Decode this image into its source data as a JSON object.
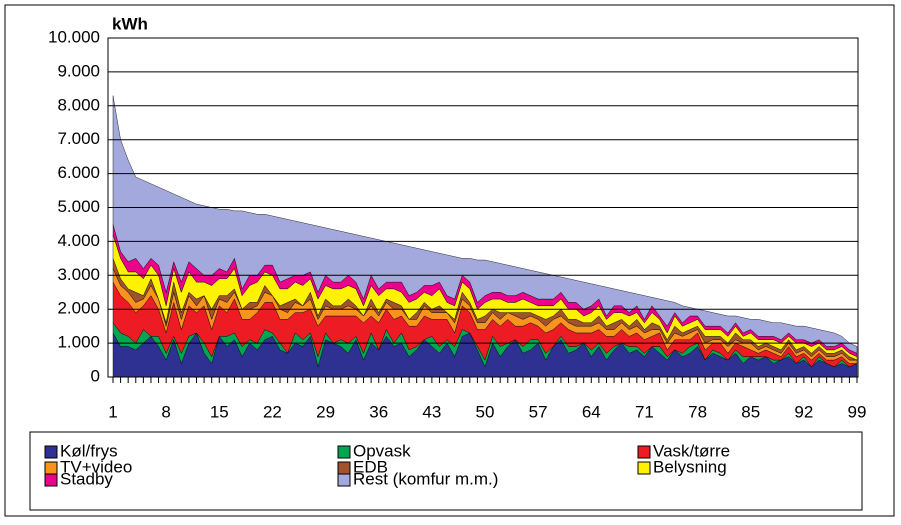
{
  "chart_data": {
    "type": "stacked_area",
    "y_label": "kWh",
    "x": [
      1,
      2,
      3,
      4,
      5,
      6,
      7,
      8,
      9,
      10,
      11,
      12,
      13,
      14,
      15,
      16,
      17,
      18,
      19,
      20,
      21,
      22,
      23,
      24,
      25,
      26,
      27,
      28,
      29,
      30,
      31,
      32,
      33,
      34,
      35,
      36,
      37,
      38,
      39,
      40,
      41,
      42,
      43,
      44,
      45,
      46,
      47,
      48,
      49,
      50,
      51,
      52,
      53,
      54,
      55,
      56,
      57,
      58,
      59,
      60,
      61,
      62,
      63,
      64,
      65,
      66,
      67,
      68,
      69,
      70,
      71,
      72,
      73,
      74,
      75,
      76,
      77,
      78,
      79,
      80,
      81,
      82,
      83,
      84,
      85,
      86,
      87,
      88,
      89,
      90,
      91,
      92,
      93,
      94,
      95,
      96,
      97,
      98,
      99
    ],
    "xlim": [
      1,
      99
    ],
    "xticks": [
      1,
      8,
      15,
      22,
      29,
      36,
      43,
      50,
      57,
      64,
      71,
      78,
      85,
      92,
      99
    ],
    "ylim": [
      0,
      10000
    ],
    "yticks": [
      0,
      {
        "value": 1000,
        "label": "1.000"
      },
      {
        "value": 2000,
        "label": "2.000"
      },
      {
        "value": 3000,
        "label": "3.000"
      },
      {
        "value": 4000,
        "label": "4.000"
      },
      {
        "value": 5000,
        "label": "5.000"
      },
      {
        "value": 6000,
        "label": "6.000"
      },
      {
        "value": 7000,
        "label": "7.000"
      },
      {
        "value": 8000,
        "label": "8.000"
      },
      {
        "value": 9000,
        "label": "9.000"
      },
      {
        "value": 10000,
        "label": "10.000"
      }
    ],
    "grid": true,
    "series": [
      {
        "name": "Køl/frys",
        "color": "#2e3192",
        "values": [
          1300,
          900,
          900,
          800,
          1000,
          1200,
          900,
          500,
          1100,
          400,
          1000,
          1300,
          700,
          400,
          1200,
          900,
          1100,
          600,
          1000,
          800,
          1100,
          1200,
          800,
          700,
          1000,
          900,
          1200,
          300,
          1100,
          1000,
          900,
          700,
          1100,
          500,
          1000,
          800,
          1200,
          900,
          1000,
          600,
          800,
          1100,
          900,
          700,
          1000,
          600,
          1200,
          1300,
          800,
          300,
          1000,
          600,
          900,
          1100,
          700,
          800,
          1000,
          500,
          900,
          1100,
          700,
          800,
          1000,
          600,
          900,
          500,
          800,
          1000,
          700,
          800,
          600,
          900,
          700,
          500,
          800,
          600,
          700,
          900,
          500,
          700,
          600,
          500,
          700,
          400,
          600,
          500,
          600,
          400,
          500,
          600,
          400,
          500,
          300,
          500,
          400,
          300,
          400,
          300,
          400
        ]
      },
      {
        "name": "Opvask",
        "color": "#00a651",
        "values": [
          300,
          400,
          300,
          200,
          400,
          0,
          300,
          200,
          100,
          300,
          200,
          0,
          300,
          200,
          0,
          300,
          200,
          300,
          100,
          200,
          300,
          100,
          200,
          0,
          300,
          200,
          100,
          300,
          200,
          0,
          200,
          300,
          100,
          200,
          300,
          0,
          200,
          100,
          300,
          200,
          100,
          0,
          300,
          200,
          100,
          300,
          200,
          0,
          100,
          200,
          200,
          300,
          100,
          0,
          200,
          300,
          100,
          200,
          0,
          100,
          200,
          100,
          0,
          200,
          100,
          200,
          100,
          0,
          200,
          100,
          100,
          0,
          200,
          100,
          0,
          100,
          200,
          100,
          0,
          100,
          100,
          0,
          100,
          200,
          0,
          100,
          0,
          100,
          0,
          100,
          0,
          100,
          0,
          100,
          0,
          0,
          100,
          0,
          0
        ]
      },
      {
        "name": "Vask/tørre",
        "color": "#ed1c24",
        "values": [
          1200,
          1100,
          1000,
          900,
          700,
          1200,
          800,
          600,
          1000,
          700,
          900,
          600,
          1100,
          800,
          900,
          700,
          1000,
          800,
          600,
          900,
          800,
          900,
          700,
          1000,
          600,
          800,
          700,
          900,
          500,
          800,
          700,
          800,
          600,
          900,
          500,
          800,
          600,
          700,
          500,
          700,
          600,
          700,
          500,
          800,
          600,
          400,
          700,
          600,
          500,
          900,
          500,
          600,
          700,
          400,
          600,
          500,
          400,
          600,
          500,
          400,
          500,
          400,
          300,
          500,
          400,
          500,
          300,
          400,
          300,
          400,
          400,
          300,
          400,
          200,
          300,
          400,
          200,
          300,
          300,
          200,
          300,
          200,
          200,
          300,
          200,
          100,
          200,
          200,
          100,
          200,
          200,
          100,
          200,
          100,
          100,
          200,
          100,
          100,
          0
        ]
      },
      {
        "name": "TV+video",
        "color": "#f7941d",
        "values": [
          400,
          300,
          300,
          300,
          200,
          300,
          300,
          200,
          300,
          300,
          300,
          200,
          300,
          300,
          200,
          300,
          200,
          300,
          300,
          200,
          300,
          200,
          300,
          200,
          300,
          200,
          300,
          200,
          300,
          200,
          200,
          300,
          200,
          200,
          300,
          200,
          200,
          300,
          200,
          200,
          200,
          300,
          200,
          200,
          200,
          300,
          200,
          200,
          200,
          200,
          200,
          200,
          200,
          300,
          200,
          200,
          200,
          200,
          300,
          200,
          200,
          200,
          200,
          200,
          200,
          200,
          200,
          200,
          200,
          200,
          200,
          200,
          100,
          200,
          200,
          100,
          200,
          100,
          200,
          100,
          100,
          200,
          100,
          100,
          200,
          100,
          100,
          100,
          100,
          100,
          100,
          100,
          100,
          100,
          100,
          100,
          100,
          100,
          100
        ]
      },
      {
        "name": "EDB",
        "color": "#a0522d",
        "values": [
          300,
          200,
          100,
          300,
          100,
          200,
          0,
          100,
          300,
          200,
          100,
          200,
          0,
          300,
          100,
          200,
          100,
          0,
          200,
          100,
          200,
          0,
          100,
          300,
          100,
          0,
          200,
          100,
          200,
          100,
          100,
          200,
          100,
          0,
          200,
          100,
          100,
          200,
          100,
          0,
          200,
          100,
          100,
          200,
          0,
          100,
          200,
          100,
          100,
          200,
          100,
          200,
          0,
          100,
          200,
          100,
          100,
          200,
          100,
          200,
          100,
          200,
          100,
          100,
          200,
          100,
          200,
          100,
          100,
          200,
          100,
          200,
          100,
          100,
          200,
          100,
          100,
          100,
          200,
          100,
          100,
          100,
          200,
          100,
          100,
          100,
          100,
          100,
          100,
          100,
          100,
          100,
          100,
          100,
          100,
          100,
          100,
          100,
          0
        ]
      },
      {
        "name": "Belysning",
        "color": "#fff200",
        "values": [
          700,
          600,
          500,
          600,
          500,
          400,
          700,
          500,
          400,
          600,
          600,
          500,
          400,
          700,
          500,
          500,
          600,
          400,
          500,
          600,
          400,
          600,
          500,
          400,
          500,
          600,
          400,
          500,
          400,
          500,
          500,
          400,
          500,
          300,
          400,
          500,
          300,
          400,
          400,
          500,
          400,
          300,
          400,
          500,
          300,
          400,
          300,
          400,
          300,
          400,
          300,
          400,
          300,
          300,
          400,
          300,
          300,
          400,
          300,
          300,
          300,
          300,
          200,
          300,
          300,
          200,
          300,
          200,
          300,
          200,
          200,
          300,
          200,
          200,
          300,
          200,
          200,
          200,
          200,
          200,
          200,
          200,
          200,
          100,
          200,
          200,
          100,
          200,
          200,
          100,
          200,
          100,
          200,
          100,
          100,
          100,
          100,
          100,
          100
        ]
      },
      {
        "name": "Stadby",
        "color": "#ec008c",
        "values": [
          300,
          200,
          300,
          400,
          300,
          200,
          300,
          400,
          200,
          300,
          300,
          400,
          200,
          300,
          300,
          200,
          300,
          200,
          300,
          200,
          200,
          300,
          200,
          300,
          200,
          300,
          200,
          200,
          300,
          200,
          200,
          300,
          200,
          200,
          300,
          200,
          200,
          200,
          300,
          200,
          200,
          200,
          300,
          200,
          200,
          200,
          200,
          200,
          200,
          200,
          200,
          200,
          200,
          200,
          200,
          200,
          200,
          200,
          200,
          200,
          200,
          200,
          200,
          200,
          200,
          100,
          200,
          200,
          100,
          200,
          100,
          200,
          100,
          200,
          100,
          100,
          200,
          100,
          100,
          100,
          100,
          100,
          100,
          100,
          100,
          100,
          100,
          100,
          100,
          100,
          100,
          100,
          100,
          100,
          100,
          100,
          100,
          100,
          100
        ]
      },
      {
        "name": "Rest (komfur m.m.)",
        "color": "#a3a9dc",
        "values": [
          3800,
          3300,
          3000,
          2400,
          2600,
          2200,
          2300,
          3000,
          2000,
          2500,
          1800,
          1900,
          2050,
          2000,
          1750,
          1850,
          1400,
          2300,
          1850,
          1800,
          1500,
          1450,
          1900,
          1750,
          1600,
          1550,
          1400,
          1950,
          1400,
          1550,
          1500,
          1250,
          1400,
          1850,
          1100,
          1450,
          1200,
          1150,
          1100,
          1450,
          1300,
          1050,
          1000,
          850,
          1200,
          1250,
          500,
          700,
          1250,
          1050,
          900,
          850,
          900,
          850,
          700,
          750,
          800,
          750,
          700,
          450,
          700,
          650,
          800,
          650,
          400,
          850,
          500,
          450,
          600,
          350,
          700,
          250,
          500,
          750,
          300,
          500,
          250,
          200,
          450,
          400,
          350,
          500,
          200,
          450,
          300,
          500,
          450,
          400,
          500,
          250,
          400,
          400,
          450,
          300,
          450,
          400,
          200,
          200,
          200
        ]
      }
    ]
  }
}
